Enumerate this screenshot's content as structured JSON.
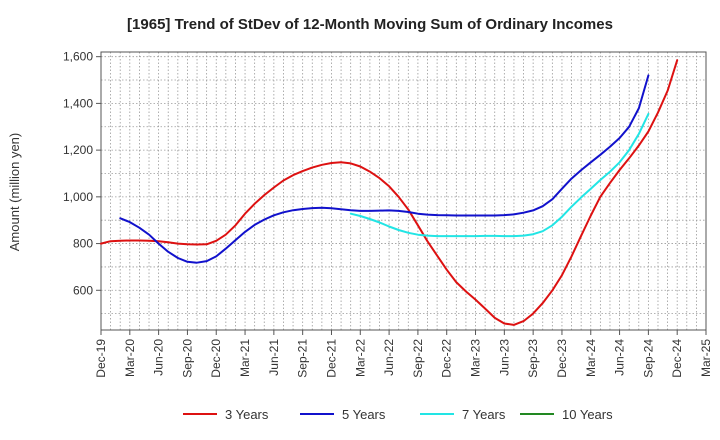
{
  "chart_data": {
    "type": "line",
    "title": "[1965]  Trend of StDev of 12-Month Moving Sum of Ordinary Incomes",
    "xlabel": "",
    "ylabel": "Amount (million yen)",
    "ylim": [
      430,
      1620
    ],
    "yticks": [
      600,
      800,
      1000,
      1200,
      1400,
      1600
    ],
    "ytick_labels": [
      "600",
      "800",
      "1,000",
      "1,200",
      "1,400",
      "1,600"
    ],
    "x_categories": [
      "Dec-19",
      "Mar-20",
      "Jun-20",
      "Sep-20",
      "Dec-20",
      "Mar-21",
      "Jun-21",
      "Sep-21",
      "Dec-21",
      "Mar-22",
      "Jun-22",
      "Sep-22",
      "Dec-22",
      "Mar-23",
      "Jun-23",
      "Sep-23",
      "Dec-23",
      "Mar-24",
      "Jun-24",
      "Sep-24",
      "Dec-24",
      "Mar-25"
    ],
    "grid": true,
    "legend_position": "bottom",
    "series": [
      {
        "name": "3 Years",
        "color": "#dd1111",
        "points": [
          [
            0,
            800
          ],
          [
            0.33,
            810
          ],
          [
            0.67,
            812
          ],
          [
            1,
            813
          ],
          [
            1.33,
            813
          ],
          [
            1.67,
            812
          ],
          [
            2,
            810
          ],
          [
            2.33,
            806
          ],
          [
            2.67,
            800
          ],
          [
            3,
            797
          ],
          [
            3.33,
            796
          ],
          [
            3.67,
            797
          ],
          [
            4,
            812
          ],
          [
            4.33,
            838
          ],
          [
            4.67,
            878
          ],
          [
            5,
            928
          ],
          [
            5.33,
            970
          ],
          [
            5.67,
            1008
          ],
          [
            6,
            1040
          ],
          [
            6.33,
            1070
          ],
          [
            6.67,
            1093
          ],
          [
            7,
            1110
          ],
          [
            7.33,
            1125
          ],
          [
            7.67,
            1137
          ],
          [
            8,
            1145
          ],
          [
            8.33,
            1148
          ],
          [
            8.67,
            1143
          ],
          [
            9,
            1130
          ],
          [
            9.33,
            1108
          ],
          [
            9.67,
            1080
          ],
          [
            10,
            1045
          ],
          [
            10.33,
            1000
          ],
          [
            10.67,
            945
          ],
          [
            11,
            878
          ],
          [
            11.33,
            810
          ],
          [
            11.67,
            748
          ],
          [
            12,
            688
          ],
          [
            12.33,
            635
          ],
          [
            12.67,
            595
          ],
          [
            13,
            560
          ],
          [
            13.33,
            522
          ],
          [
            13.67,
            482
          ],
          [
            14,
            458
          ],
          [
            14.33,
            452
          ],
          [
            14.67,
            468
          ],
          [
            15,
            500
          ],
          [
            15.33,
            545
          ],
          [
            15.67,
            600
          ],
          [
            16,
            665
          ],
          [
            16.33,
            745
          ],
          [
            16.67,
            835
          ],
          [
            17,
            920
          ],
          [
            17.33,
            1000
          ],
          [
            17.67,
            1060
          ],
          [
            18,
            1115
          ],
          [
            18.33,
            1165
          ],
          [
            18.67,
            1220
          ],
          [
            19,
            1280
          ],
          [
            19.33,
            1360
          ],
          [
            19.67,
            1455
          ],
          [
            20,
            1585
          ]
        ]
      },
      {
        "name": "5 Years",
        "color": "#1111cc",
        "points": [
          [
            0.67,
            908
          ],
          [
            1,
            892
          ],
          [
            1.33,
            868
          ],
          [
            1.67,
            838
          ],
          [
            2,
            800
          ],
          [
            2.33,
            765
          ],
          [
            2.67,
            738
          ],
          [
            3,
            722
          ],
          [
            3.33,
            718
          ],
          [
            3.67,
            725
          ],
          [
            4,
            745
          ],
          [
            4.33,
            778
          ],
          [
            4.67,
            815
          ],
          [
            5,
            850
          ],
          [
            5.33,
            880
          ],
          [
            5.67,
            903
          ],
          [
            6,
            921
          ],
          [
            6.33,
            934
          ],
          [
            6.67,
            943
          ],
          [
            7,
            948
          ],
          [
            7.33,
            952
          ],
          [
            7.67,
            953
          ],
          [
            8,
            951
          ],
          [
            8.33,
            947
          ],
          [
            8.67,
            943
          ],
          [
            9,
            940
          ],
          [
            9.33,
            940
          ],
          [
            9.67,
            941
          ],
          [
            10,
            942
          ],
          [
            10.33,
            940
          ],
          [
            10.67,
            935
          ],
          [
            11,
            928
          ],
          [
            11.33,
            924
          ],
          [
            11.67,
            922
          ],
          [
            12,
            921
          ],
          [
            12.33,
            920
          ],
          [
            12.67,
            920
          ],
          [
            13,
            920
          ],
          [
            13.33,
            920
          ],
          [
            13.67,
            920
          ],
          [
            14,
            922
          ],
          [
            14.33,
            925
          ],
          [
            14.67,
            932
          ],
          [
            15,
            942
          ],
          [
            15.33,
            960
          ],
          [
            15.67,
            990
          ],
          [
            16,
            1035
          ],
          [
            16.33,
            1078
          ],
          [
            16.67,
            1115
          ],
          [
            17,
            1148
          ],
          [
            17.33,
            1180
          ],
          [
            17.67,
            1215
          ],
          [
            18,
            1252
          ],
          [
            18.33,
            1300
          ],
          [
            18.67,
            1380
          ],
          [
            19,
            1520
          ]
        ]
      },
      {
        "name": "7 Years",
        "color": "#22e5e5",
        "points": [
          [
            8.67,
            928
          ],
          [
            9,
            918
          ],
          [
            9.33,
            905
          ],
          [
            9.67,
            890
          ],
          [
            10,
            873
          ],
          [
            10.33,
            858
          ],
          [
            10.67,
            846
          ],
          [
            11,
            838
          ],
          [
            11.33,
            834
          ],
          [
            11.67,
            832
          ],
          [
            12,
            832
          ],
          [
            12.33,
            832
          ],
          [
            12.67,
            832
          ],
          [
            13,
            832
          ],
          [
            13.33,
            833
          ],
          [
            13.67,
            833
          ],
          [
            14,
            832
          ],
          [
            14.33,
            832
          ],
          [
            14.67,
            834
          ],
          [
            15,
            840
          ],
          [
            15.33,
            853
          ],
          [
            15.67,
            878
          ],
          [
            16,
            915
          ],
          [
            16.33,
            958
          ],
          [
            16.67,
            998
          ],
          [
            17,
            1035
          ],
          [
            17.33,
            1072
          ],
          [
            17.67,
            1108
          ],
          [
            18,
            1148
          ],
          [
            18.33,
            1200
          ],
          [
            18.67,
            1270
          ],
          [
            19,
            1355
          ]
        ]
      },
      {
        "name": "10 Years",
        "color": "#228822",
        "points": []
      }
    ]
  }
}
